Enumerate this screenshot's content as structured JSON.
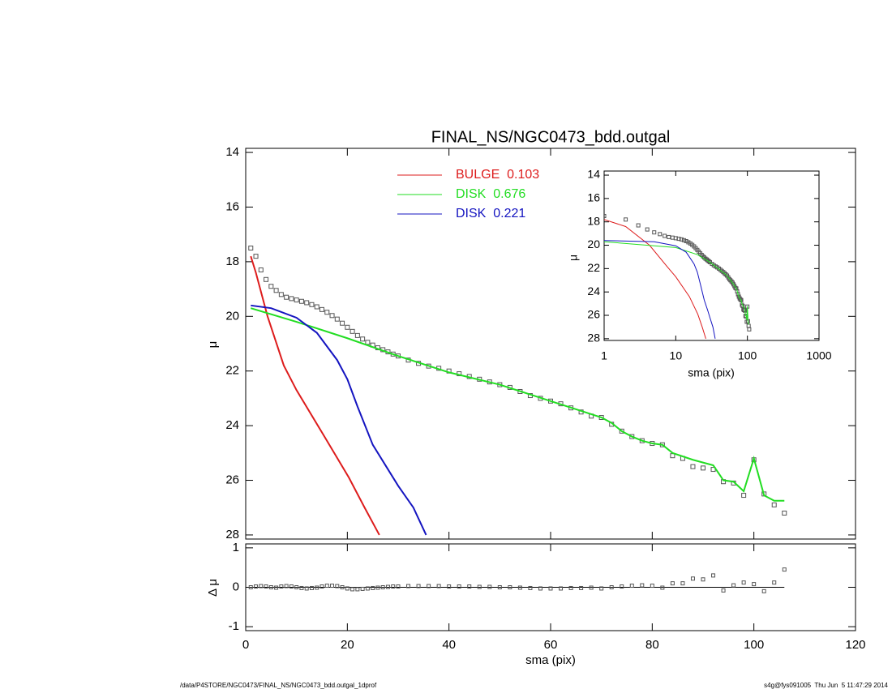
{
  "chart_data": [
    {
      "type": "line",
      "title": "FINAL_NS/NGC0473_bdd.outgal",
      "ylabel": "μ",
      "xlim": [
        0,
        120
      ],
      "xticks": [
        0,
        20,
        40,
        60,
        80,
        100,
        120
      ],
      "ylim": [
        13.85,
        28.15
      ],
      "y_inverted": true,
      "yticks": [
        14,
        16,
        18,
        20,
        22,
        24,
        26,
        28
      ],
      "series": [
        {
          "marker": "square",
          "color": "#555555",
          "x": [
            1,
            2,
            3,
            4,
            5,
            6,
            7,
            8,
            9,
            10,
            11,
            12,
            13,
            14,
            15,
            16,
            17,
            18,
            19,
            20,
            21,
            22,
            23,
            24,
            25,
            26,
            27,
            28,
            29,
            30,
            32,
            34,
            36,
            38,
            40,
            42,
            44,
            46,
            48,
            50,
            52,
            54,
            56,
            58,
            60,
            62,
            64,
            66,
            68,
            70,
            72,
            74,
            76,
            78,
            80,
            82,
            84,
            86,
            88,
            90,
            92,
            94,
            96,
            98,
            100,
            102,
            104,
            106
          ],
          "values": [
            17.5,
            17.8,
            18.3,
            18.65,
            18.9,
            19.05,
            19.2,
            19.3,
            19.35,
            19.4,
            19.45,
            19.5,
            19.57,
            19.65,
            19.75,
            19.85,
            19.97,
            20.1,
            20.25,
            20.4,
            20.55,
            20.7,
            20.83,
            20.95,
            21.05,
            21.15,
            21.22,
            21.3,
            21.38,
            21.45,
            21.6,
            21.72,
            21.82,
            21.9,
            22.0,
            22.1,
            22.2,
            22.3,
            22.4,
            22.5,
            22.6,
            22.75,
            22.9,
            23.0,
            23.1,
            23.2,
            23.35,
            23.5,
            23.65,
            23.7,
            23.95,
            24.2,
            24.4,
            24.55,
            24.65,
            24.7,
            25.1,
            25.2,
            25.5,
            25.55,
            25.6,
            26.05,
            26.1,
            26.55,
            25.25,
            26.5,
            26.9,
            27.2
          ]
        },
        {
          "name": "BULGE  0.103",
          "color": "#dd1c1c",
          "x": [
            1,
            2,
            4.3,
            7.5,
            10,
            15.5,
            20.3,
            23.4,
            26.3
          ],
          "values": [
            17.8,
            18.4,
            20.0,
            21.8,
            22.7,
            24.4,
            25.9,
            27.0,
            28.0
          ]
        },
        {
          "name": "DISK  0.676",
          "color": "#22dd22",
          "x": [
            1,
            10,
            20,
            30,
            40,
            50,
            60,
            70,
            72,
            74,
            76,
            78,
            80,
            82,
            84,
            88,
            92,
            94,
            96,
            98,
            100,
            102,
            104,
            106
          ],
          "values": [
            19.7,
            20.2,
            20.8,
            21.45,
            22.05,
            22.5,
            23.1,
            23.7,
            23.9,
            24.2,
            24.4,
            24.55,
            24.65,
            24.7,
            25.0,
            25.25,
            25.45,
            26.0,
            26.05,
            26.4,
            25.2,
            26.55,
            26.75,
            26.75
          ]
        },
        {
          "name": "DISK  0.221",
          "color": "#1414c0",
          "x": [
            1,
            5,
            10,
            14,
            18,
            20,
            22,
            25,
            28,
            30,
            33,
            35.5
          ],
          "values": [
            19.6,
            19.7,
            20.05,
            20.6,
            21.6,
            22.3,
            23.3,
            24.7,
            25.6,
            26.2,
            27.0,
            28.0
          ]
        }
      ]
    },
    {
      "type": "scatter",
      "xlabel": "sma (pix)",
      "ylabel": "Δ μ",
      "xlim": [
        0,
        120
      ],
      "xticks": [
        0,
        20,
        40,
        60,
        80,
        100,
        120
      ],
      "ylim": [
        -1.1,
        1.1
      ],
      "yticks": [
        -1,
        0,
        1
      ],
      "color": "#555555",
      "x": [
        1,
        2,
        3,
        4,
        5,
        6,
        7,
        8,
        9,
        10,
        11,
        12,
        13,
        14,
        15,
        16,
        17,
        18,
        19,
        20,
        21,
        22,
        23,
        24,
        25,
        26,
        27,
        28,
        29,
        30,
        32,
        34,
        36,
        38,
        40,
        42,
        44,
        46,
        48,
        50,
        52,
        54,
        56,
        58,
        60,
        62,
        64,
        66,
        68,
        70,
        72,
        74,
        76,
        78,
        80,
        82,
        84,
        86,
        88,
        90,
        92,
        94,
        96,
        98,
        100,
        102,
        104,
        106
      ],
      "values": [
        0,
        0.02,
        0.03,
        0.02,
        0,
        -0.01,
        0.02,
        0.03,
        0.02,
        0,
        -0.02,
        -0.03,
        -0.02,
        -0.01,
        0.02,
        0.04,
        0.04,
        0.03,
        0,
        -0.03,
        -0.05,
        -0.05,
        -0.04,
        -0.03,
        -0.02,
        -0.01,
        0,
        0.01,
        0.02,
        0.02,
        0.03,
        0.03,
        0.03,
        0.03,
        0.02,
        0.02,
        0.02,
        0.01,
        0.01,
        0,
        0,
        -0.01,
        -0.02,
        -0.03,
        -0.03,
        -0.03,
        -0.02,
        -0.02,
        -0.01,
        -0.03,
        0,
        0.02,
        0.04,
        0.05,
        0.04,
        -0.01,
        0.1,
        0.1,
        0.22,
        0.2,
        0.3,
        -0.08,
        0.05,
        0.12,
        0.08,
        -0.1,
        0.12,
        0.45
      ]
    },
    {
      "type": "line",
      "log_x": true,
      "xlabel": "sma (pix)",
      "ylabel": "μ",
      "xlim": [
        1,
        1000
      ],
      "xticks": [
        1,
        10,
        100,
        1000
      ],
      "ylim": [
        13.65,
        28.15
      ],
      "y_inverted": true,
      "yticks": [
        14,
        16,
        18,
        20,
        22,
        24,
        26,
        28
      ]
    }
  ],
  "footer": {
    "left": "/data/P4STORE/NGC0473/FINAL_NS/NGC0473_bdd.outgal_1dprof",
    "right": "s4g@fys091005  Thu Jun  5 11:47:29 2014"
  }
}
